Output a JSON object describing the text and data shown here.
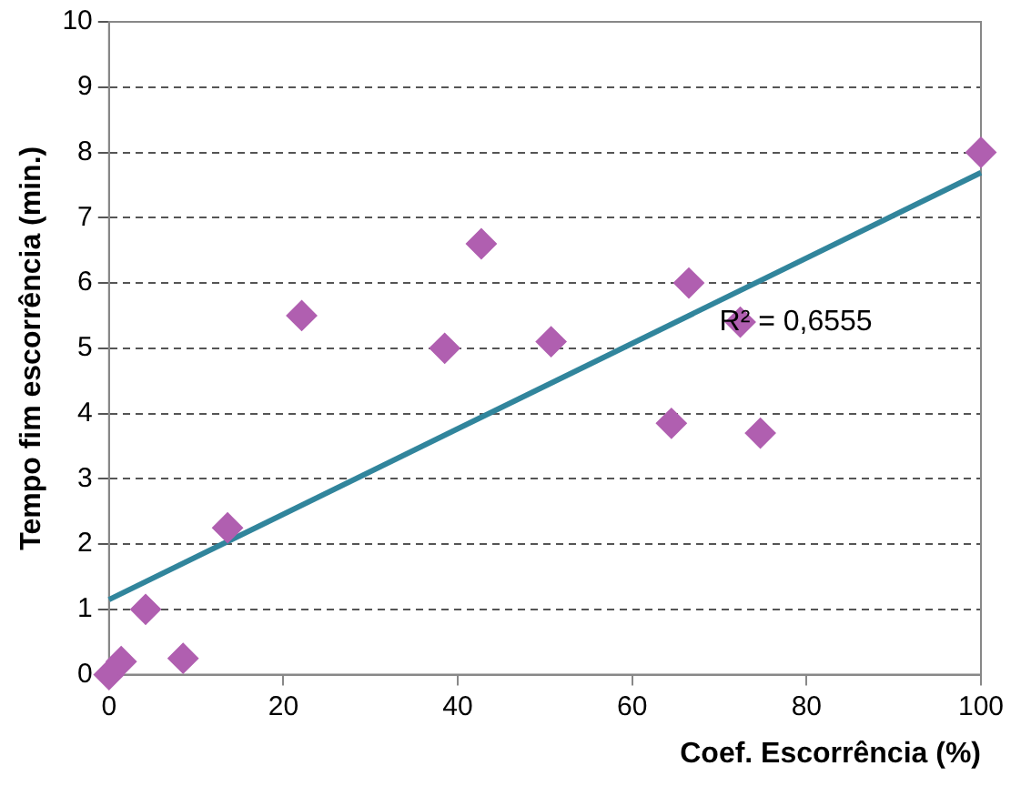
{
  "chart_data": {
    "type": "scatter",
    "xlabel": "Coef. Escorrência (%)",
    "ylabel": "Tempo fim escorrência (min.)",
    "xlim": [
      0,
      100
    ],
    "xticks": [
      0,
      20,
      40,
      60,
      80,
      100
    ],
    "ylim": [
      0,
      10
    ],
    "yticks": [
      0,
      1,
      2,
      3,
      4,
      5,
      6,
      7,
      8,
      9,
      10
    ],
    "grid": "y",
    "marker": "diamond",
    "series": [
      {
        "type": "scatter",
        "color": "#b05fb0",
        "x": [
          0,
          1.4,
          4.2,
          8.5,
          13.6,
          22.1,
          38.5,
          42.7,
          50.7,
          64.5,
          66.5,
          72.4,
          74.7,
          100
        ],
        "values": [
          0,
          0.2,
          1.0,
          0.25,
          2.25,
          5.5,
          5.0,
          6.6,
          5.1,
          3.85,
          6.0,
          5.4,
          3.7,
          8.0
        ]
      },
      {
        "type": "line",
        "color": "#31859c",
        "x": [
          0,
          100
        ],
        "values": [
          1.15,
          7.69
        ],
        "marker": "none"
      }
    ],
    "annotations": [
      {
        "text": "R² = 0,6555",
        "x": 70,
        "y": 5.4
      }
    ]
  }
}
